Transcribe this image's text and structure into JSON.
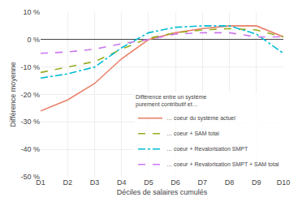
{
  "chart_data": {
    "type": "line",
    "categories": [
      "D1",
      "D2",
      "D3",
      "D4",
      "D5",
      "D6",
      "D7",
      "D8",
      "D9",
      "D10"
    ],
    "series": [
      {
        "name": "… coeur du système actuel",
        "color": "#e8806a",
        "line_style": "solid",
        "values": [
          -26,
          -22,
          -16,
          -7,
          0.0,
          2.5,
          4.0,
          5.0,
          5.0,
          1.0
        ]
      },
      {
        "name": "… coeur + SAM total",
        "color": "#9aab20",
        "line_style": "dashed",
        "values": [
          -12,
          -10,
          -8,
          -3.5,
          0.5,
          2.5,
          3.5,
          4.0,
          3.5,
          1.0
        ]
      },
      {
        "name": "… coeur + Revalorisation SMPT",
        "color": "#00bcd4",
        "line_style": "dashdot",
        "values": [
          -14,
          -12.5,
          -10,
          -3.0,
          2.5,
          4.5,
          5.0,
          5.0,
          2.0,
          -5.0
        ]
      },
      {
        "name": "… coeur + Revalorisation SMPT + SAM total",
        "color": "#cc77ee",
        "line_style": "dashed",
        "values": [
          -5,
          -4.5,
          -3.5,
          -1.5,
          0.0,
          2.0,
          2.5,
          2.5,
          1.0,
          1.0
        ]
      }
    ],
    "legend_title": "Différence entre un système\npurement contributif et…",
    "xlabel": "Déciles de salaires cumulés",
    "ylabel": "Différence moyenne",
    "ylim": [
      -50,
      10
    ],
    "yticks": [
      {
        "value": -50,
        "label": "-50 %"
      },
      {
        "value": -40,
        "label": "-40 %"
      },
      {
        "value": -30,
        "label": "-30 %"
      },
      {
        "value": -20,
        "label": "-20 %"
      },
      {
        "value": -10,
        "label": "-10 %"
      },
      {
        "value": 0,
        "label": "0 %"
      },
      {
        "value": 10,
        "label": "10 %"
      }
    ],
    "grid": true,
    "legend": "lower right"
  }
}
